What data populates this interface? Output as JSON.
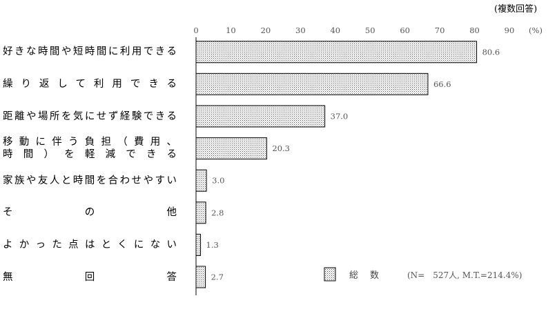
{
  "chart_data": {
    "type": "bar",
    "orientation": "horizontal",
    "note": "(複数回答)",
    "unit": "(%)",
    "xlim": [
      0,
      90
    ],
    "ticks": [
      0,
      10,
      20,
      30,
      40,
      50,
      60,
      70,
      80,
      90
    ],
    "categories": [
      "好きな時間や短時間に利用できる",
      "繰り返して利用できる",
      "距離や場所を気にせず経験できる",
      "移動に伴う負担（費用、時間）を軽減できる",
      "家族や友人と時間を合わせやすい",
      "その他",
      "よかった点はとくにない",
      "無回答"
    ],
    "category_lines": [
      [
        "好きな時間や短時間に利用できる"
      ],
      [
        "繰り返して利用できる"
      ],
      [
        "距離や場所を気にせず経験できる"
      ],
      [
        "移動に伴う負担（費用、",
        "時間）を軽減できる"
      ],
      [
        "家族や友人と時間を合わせやすい"
      ],
      [
        "その他"
      ],
      [
        "よかった点はとくにない"
      ],
      [
        "無回答"
      ]
    ],
    "value_labels": [
      "80.6",
      "66.6",
      "37.0",
      "20.3",
      "3.0",
      "2.8",
      "1.3",
      "2.7"
    ],
    "series": [
      {
        "name": "総　数",
        "values": [
          80.6,
          66.6,
          37.0,
          20.3,
          3.0,
          2.8,
          1.3,
          2.7
        ]
      }
    ],
    "legend": {
      "label": "総　数",
      "detail": "(N=　527人, M.T.=214.4%)",
      "placement": "bottom-right"
    },
    "grid": false
  }
}
